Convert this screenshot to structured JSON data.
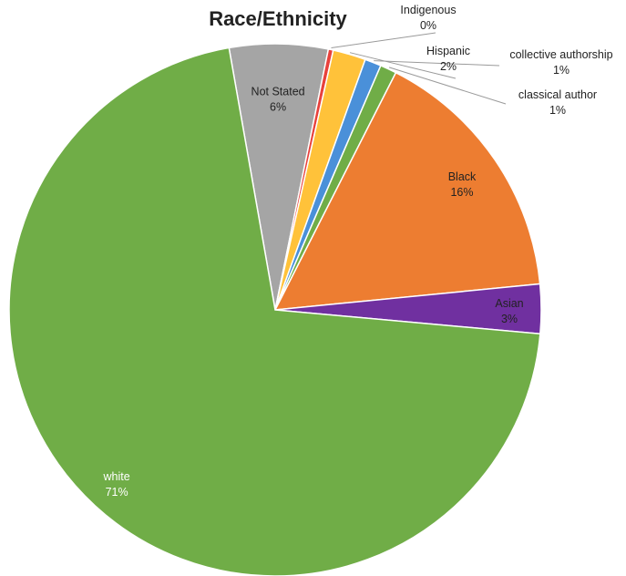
{
  "chart_data": {
    "type": "pie",
    "title": "Race/Ethnicity",
    "slices": [
      {
        "name": "Not Stated",
        "value": 6,
        "label": "6%",
        "color": "#A5A5A5"
      },
      {
        "name": "Indigenous",
        "value": 0.3,
        "label": "0%",
        "color": "#E8413C"
      },
      {
        "name": "Hispanic",
        "value": 2,
        "label": "2%",
        "color": "#FFC23A"
      },
      {
        "name": "collective authorship",
        "value": 1,
        "label": "1%",
        "color": "#4A90D9"
      },
      {
        "name": "classical author",
        "value": 1,
        "label": "1%",
        "color": "#70AD47"
      },
      {
        "name": "Black",
        "value": 16,
        "label": "16%",
        "color": "#ED7D31"
      },
      {
        "name": "Asian",
        "value": 3,
        "label": "3%",
        "color": "#7030A0"
      },
      {
        "name": "white",
        "value": 71,
        "label": "71%",
        "color": "#70AD47"
      }
    ],
    "start_angle_deg": -10,
    "legend": "none"
  }
}
